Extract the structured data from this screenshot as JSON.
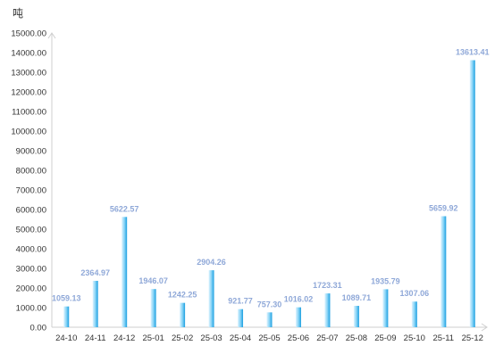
{
  "chart_data": {
    "type": "bar",
    "unit_label": "吨",
    "categories": [
      "24-10",
      "24-11",
      "24-12",
      "25-01",
      "25-02",
      "25-03",
      "25-04",
      "25-05",
      "25-06",
      "25-07",
      "25-08",
      "25-09",
      "25-10",
      "25-11",
      "25-12"
    ],
    "values": [
      1059.13,
      2364.97,
      5622.57,
      1946.07,
      1242.25,
      2904.26,
      921.77,
      757.3,
      1016.02,
      1723.31,
      1089.71,
      1935.79,
      1307.06,
      5659.92,
      13613.41
    ],
    "value_labels": [
      "1059.13",
      "2364.97",
      "5622.57",
      "1946.07",
      "1242.25",
      "2904.26",
      "921.77",
      "757.30",
      "1016.02",
      "1723.31",
      "1089.71",
      "1935.79",
      "1307.06",
      "5659.92",
      "13613.41"
    ],
    "ylim": [
      0,
      15000
    ],
    "yticks": [
      "0.00",
      "1000.00",
      "2000.00",
      "3000.00",
      "4000.00",
      "5000.00",
      "6000.00",
      "7000.00",
      "8000.00",
      "9000.00",
      "10000.00",
      "11000.00",
      "12000.00",
      "13000.00",
      "14000.00",
      "15000.00"
    ],
    "grid": false,
    "colors": {
      "bar_light": "#dff4ff",
      "bar_dark": "#1a9ee0",
      "label": "#8fa8d8",
      "axis": "#cfcfcf"
    }
  }
}
